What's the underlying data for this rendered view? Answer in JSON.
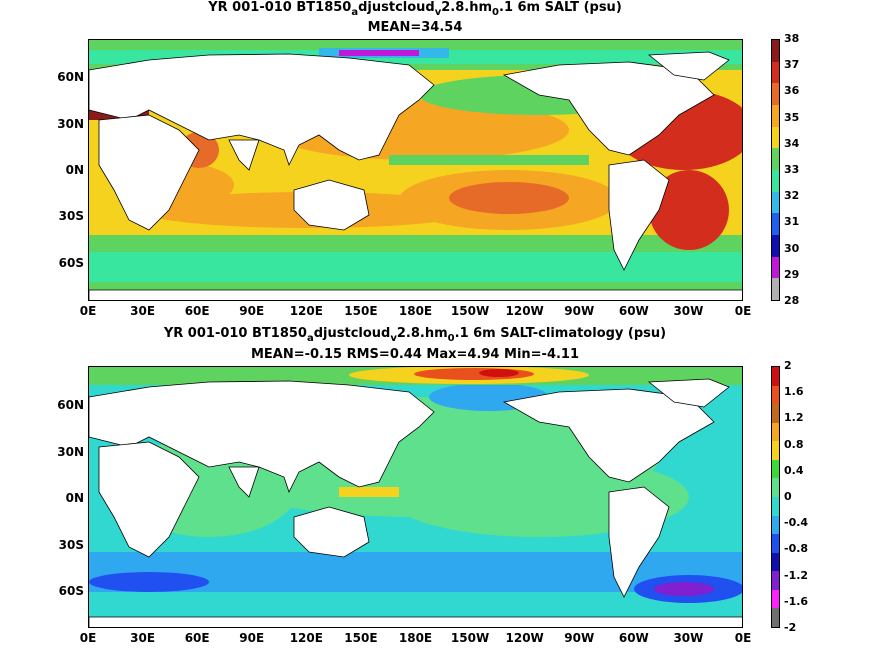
{
  "panel1": {
    "title_main": "YR 001-010 BT1850",
    "title_sub1": "a",
    "title_mid": "djustcloud",
    "title_sub2": "v",
    "title_mid2": "2.8.hm",
    "title_sub3": "0",
    "title_end": ".1 6m SALT (psu)",
    "stats": "MEAN=34.54",
    "colorbar_ticks": [
      "38",
      "37",
      "36",
      "35",
      "34",
      "33",
      "32",
      "31",
      "30",
      "29",
      "28"
    ],
    "colorbar_colors": [
      "#8b1a1a",
      "#d32d1e",
      "#e66a28",
      "#f5a623",
      "#f5d21e",
      "#5fd35f",
      "#38e6a0",
      "#34b8e8",
      "#2060f0",
      "#1010b0",
      "#c018d8",
      "#b0b0b0"
    ]
  },
  "panel2": {
    "title_main": "YR 001-010 BT1850",
    "title_sub1": "a",
    "title_mid": "djustcloud",
    "title_sub2": "v",
    "title_mid2": "2.8.hm",
    "title_sub3": "0",
    "title_end": ".1 6m SALT-climatology (psu)",
    "stats": "MEAN=-0.15   RMS=0.44   Max=4.94   Min=-4.11",
    "colorbar_ticks": [
      "2",
      "1.6",
      "1.2",
      "0.8",
      "0.4",
      "0",
      "-0.4",
      "-0.8",
      "-1.2",
      "-1.6",
      "-2"
    ],
    "colorbar_colors": [
      "#d01010",
      "#e8501e",
      "#c06a20",
      "#f5a623",
      "#f5d21e",
      "#3cd83c",
      "#5fe08c",
      "#30d8d0",
      "#30a8f0",
      "#2050f0",
      "#1010b0",
      "#8020d0",
      "#ff20ff",
      "#707070"
    ]
  },
  "axes": {
    "lat_labels": [
      "60N",
      "30N",
      "0N",
      "30S",
      "60S"
    ],
    "lon_labels": [
      "0E",
      "30E",
      "60E",
      "90E",
      "120E",
      "150E",
      "180E",
      "150W",
      "120W",
      "90W",
      "60W",
      "30W",
      "0E"
    ]
  }
}
